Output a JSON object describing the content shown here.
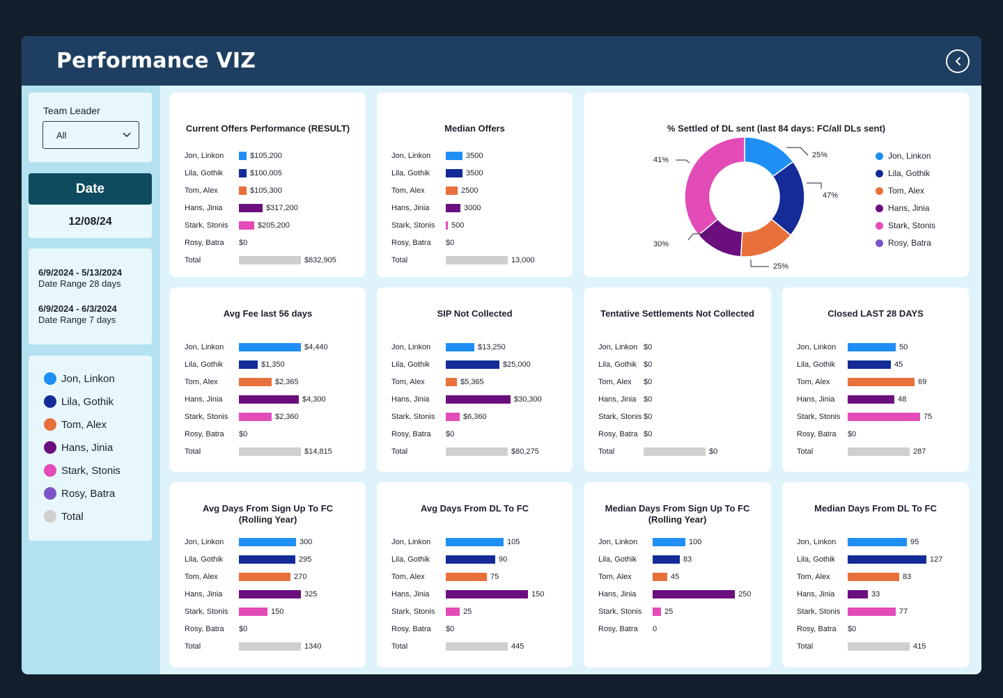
{
  "app": {
    "title": "Performance VIZ"
  },
  "colors": {
    "header": "#1e3f61",
    "jon": "#1f8ff5",
    "lila": "#142b98",
    "tom": "#e8703a",
    "hans": "#6b0f7e",
    "stark": "#e34bb7",
    "rosy": "#7b55c7",
    "total": "#cfcfcf"
  },
  "sidebar": {
    "team_leader_label": "Team Leader",
    "team_leader_value": "All",
    "date_label": "Date",
    "date_value": "12/08/24",
    "ranges": [
      {
        "dates": "6/9/2024 - 5/13/2024",
        "desc": "Date Range 28 days"
      },
      {
        "dates": "6/9/2024 - 6/3/2024",
        "desc": "Date Range 7 days"
      }
    ],
    "legend": [
      {
        "label": "Jon, Linkon",
        "color": "#1f8ff5"
      },
      {
        "label": "Lila, Gothik",
        "color": "#142b98"
      },
      {
        "label": "Tom, Alex",
        "color": "#e8703a"
      },
      {
        "label": "Hans, Jinia",
        "color": "#6b0f7e"
      },
      {
        "label": "Stark, Stonis",
        "color": "#e34bb7"
      },
      {
        "label": "Rosy, Batra",
        "color": "#7b55c7"
      },
      {
        "label": "Total",
        "color": "#cfcfcf"
      }
    ]
  },
  "chart_data": [
    {
      "type": "bar",
      "title": "Current Offers Performance (RESULT)",
      "categories": [
        "Jon, Linkon",
        "Lila, Gothik",
        "Tom, Alex",
        "Hans, Jinia",
        "Stark, Stonis",
        "Rosy, Batra",
        "Total"
      ],
      "values": [
        105200,
        100005,
        105300,
        317200,
        205200,
        0,
        832905
      ],
      "labels": [
        "$105,200",
        "$100,005",
        "$105,300",
        "$317,200",
        "$205,200",
        "$0",
        "$832,905"
      ]
    },
    {
      "type": "bar",
      "title": "Median Offers",
      "categories": [
        "Jon, Linkon",
        "Lila, Gothik",
        "Tom, Alex",
        "Hans, Jinia",
        "Stark, Stonis",
        "Rosy, Batra",
        "Total"
      ],
      "values": [
        3500,
        3500,
        2500,
        3000,
        500,
        0,
        13000
      ],
      "labels": [
        "3500",
        "3500",
        "2500",
        "3000",
        "500",
        "$0",
        "13,000"
      ]
    },
    {
      "type": "pie",
      "title": "% Settled of DL sent (last 84 days: FC/all DLs sent)",
      "categories": [
        "Jon, Linkon",
        "Lila, Gothik",
        "Tom, Alex",
        "Hans, Jinia",
        "Stark, Stonis",
        "Rosy, Batra"
      ],
      "values": [
        15,
        21,
        15,
        13,
        36,
        0
      ],
      "annotations": [
        "25%",
        "47%",
        "25%",
        "30%",
        "41%"
      ]
    },
    {
      "type": "bar",
      "title": "Avg Fee last 56 days",
      "categories": [
        "Jon, Linkon",
        "Lila, Gothik",
        "Tom, Alex",
        "Hans, Jinia",
        "Stark, Stonis",
        "Rosy, Batra",
        "Total"
      ],
      "values": [
        4440,
        1350,
        2365,
        4300,
        2360,
        0,
        14815
      ],
      "labels": [
        "$4,440",
        "$1,350",
        "$2,365",
        "$4,300",
        "$2,360",
        "$0",
        "$14,815"
      ]
    },
    {
      "type": "bar",
      "title": "SIP Not Collected",
      "categories": [
        "Jon, Linkon",
        "Lila, Gothik",
        "Tom, Alex",
        "Hans, Jinia",
        "Stark, Stonis",
        "Rosy, Batra",
        "Total"
      ],
      "values": [
        13250,
        25000,
        5365,
        30300,
        6360,
        0,
        80275
      ],
      "labels": [
        "$13,250",
        "$25,000",
        "$5,365",
        "$30,300",
        "$6,360",
        "$0",
        "$80,275"
      ]
    },
    {
      "type": "bar",
      "title": "Tentative Settlements Not Collected",
      "categories": [
        "Jon, Linkon",
        "Lila, Gothik",
        "Tom, Alex",
        "Hans, Jinia",
        "Stark, Stonis",
        "Rosy, Batra",
        "Total"
      ],
      "values": [
        0,
        0,
        0,
        0,
        0,
        0,
        0
      ],
      "labels": [
        "$0",
        "$0",
        "$0",
        "$0",
        "$0",
        "$0",
        "$0"
      ]
    },
    {
      "type": "bar",
      "title": "Closed LAST 28 DAYS",
      "categories": [
        "Jon, Linkon",
        "Lila, Gothik",
        "Tom, Alex",
        "Hans, Jinia",
        "Stark, Stonis",
        "Rosy, Batra",
        "Total"
      ],
      "values": [
        50,
        45,
        69,
        48,
        75,
        0,
        287
      ],
      "labels": [
        "50",
        "45",
        "69",
        "48",
        "75",
        "$0",
        "287"
      ]
    },
    {
      "type": "bar",
      "title": "Avg Days From Sign Up To FC\n(Rolling Year)",
      "categories": [
        "Jon, Linkon",
        "Lila, Gothik",
        "Tom, Alex",
        "Hans, Jinia",
        "Stark, Stonis",
        "Rosy, Batra",
        "Total"
      ],
      "values": [
        300,
        295,
        270,
        325,
        150,
        0,
        1340
      ],
      "labels": [
        "300",
        "295",
        "270",
        "325",
        "150",
        "$0",
        "1340"
      ]
    },
    {
      "type": "bar",
      "title": "Avg Days From DL To FC",
      "categories": [
        "Jon, Linkon",
        "Lila, Gothik",
        "Tom, Alex",
        "Hans, Jinia",
        "Stark, Stonis",
        "Rosy, Batra",
        "Total"
      ],
      "values": [
        105,
        90,
        75,
        150,
        25,
        0,
        445
      ],
      "labels": [
        "105",
        "90",
        "75",
        "150",
        "25",
        "$0",
        "445"
      ]
    },
    {
      "type": "bar",
      "title": "Median Days From Sign Up To FC\n(Rolling Year)",
      "categories": [
        "Jon, Linkon",
        "Lila, Gothik",
        "Tom, Alex",
        "Hans, Jinia",
        "Stark, Stonis",
        "Rosy, Batra"
      ],
      "values": [
        100,
        83,
        45,
        250,
        25,
        0
      ],
      "labels": [
        "100",
        "83",
        "45",
        "250",
        "25",
        "0"
      ]
    },
    {
      "type": "bar",
      "title": "Median Days From DL To FC",
      "categories": [
        "Jon, Linkon",
        "Lila, Gothik",
        "Tom, Alex",
        "Hans, Jinia",
        "Stark, Stonis",
        "Rosy, Batra",
        "Total"
      ],
      "values": [
        95,
        127,
        83,
        33,
        77,
        0,
        415
      ],
      "labels": [
        "95",
        "127",
        "83",
        "33",
        "77",
        "$0",
        "415"
      ]
    }
  ]
}
